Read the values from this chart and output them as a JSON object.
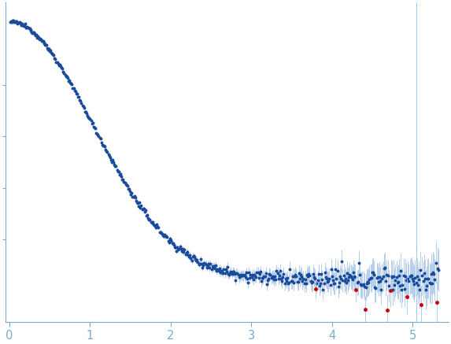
{
  "data_color": "#1a4b9b",
  "error_color": "#a8c8e8",
  "outlier_color": "#cc0000",
  "vline_x": 5.05,
  "vline_color": "#99ccee",
  "background": "#ffffff",
  "axis_color": "#7aaad0",
  "tick_color": "#7aaad0",
  "xlim": [
    -0.05,
    5.45
  ],
  "ylim_data_min": 0.0,
  "ylim_data_max": 1.0,
  "xticks": [
    0,
    1,
    2,
    3,
    4,
    5
  ],
  "seed": 12345,
  "n_points": 500,
  "Rg": 45.0,
  "I0": 1.0,
  "q_min": 0.008,
  "q_max": 5.32,
  "flat_level": 0.045,
  "noise_base": 0.003,
  "noise_high": 0.025,
  "sigma_base": 0.002,
  "sigma_high": 0.08
}
